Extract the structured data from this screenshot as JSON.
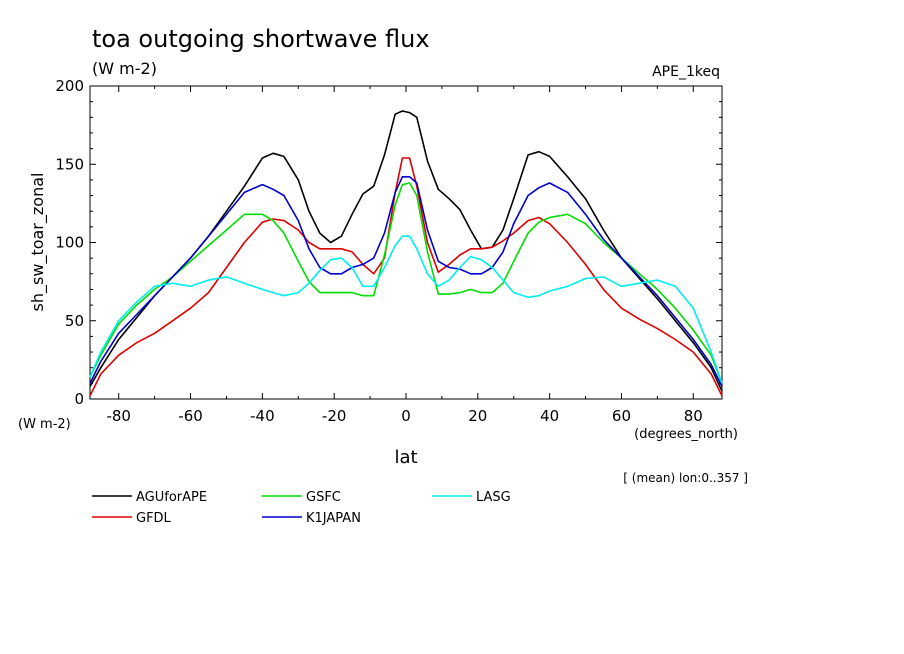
{
  "chart_data": {
    "type": "line",
    "title": "toa outgoing shortwave flux",
    "units": "(W m-2)",
    "experiment": "APE_1keq",
    "ylabel": "sh_sw_toar_zonal",
    "yunits": "(W m-2)",
    "xlabel": "lat",
    "xunits": "(degrees_north)",
    "note": "[ (mean) lon:0..357 ]",
    "xlim": [
      -88,
      88
    ],
    "ylim": [
      0,
      200
    ],
    "xticks": [
      "-80",
      "-60",
      "-40",
      "-20",
      "0",
      "20",
      "40",
      "60",
      "80"
    ],
    "yticks": [
      "0",
      "50",
      "100",
      "150",
      "200"
    ],
    "grid": false,
    "legend_position": "bottom",
    "series": [
      {
        "name": "AGUforAPE",
        "color": "#000000",
        "x": [
          -88,
          -85,
          -80,
          -75,
          -70,
          -65,
          -60,
          -55,
          -50,
          -45,
          -40,
          -37,
          -34,
          -30,
          -27,
          -24,
          -21,
          -18,
          -15,
          -12,
          -9,
          -6,
          -3,
          -1,
          1,
          3,
          6,
          9,
          12,
          15,
          18,
          21,
          24,
          27,
          30,
          34,
          37,
          40,
          45,
          50,
          55,
          60,
          65,
          70,
          75,
          80,
          85,
          88
        ],
        "y": [
          8,
          20,
          38,
          52,
          66,
          78,
          90,
          104,
          120,
          136,
          154,
          157,
          155,
          140,
          120,
          106,
          100,
          104,
          118,
          131,
          136,
          156,
          182,
          184,
          183,
          180,
          152,
          134,
          128,
          121,
          108,
          96,
          97,
          108,
          128,
          156,
          158,
          155,
          142,
          128,
          108,
          90,
          77,
          64,
          50,
          36,
          20,
          5
        ]
      },
      {
        "name": "GFDL",
        "color": "#dd0000",
        "x": [
          -88,
          -85,
          -80,
          -75,
          -70,
          -65,
          -60,
          -55,
          -50,
          -45,
          -40,
          -37,
          -34,
          -30,
          -27,
          -24,
          -21,
          -18,
          -15,
          -12,
          -9,
          -6,
          -3,
          -1,
          1,
          3,
          6,
          9,
          12,
          15,
          18,
          21,
          24,
          27,
          30,
          34,
          37,
          40,
          45,
          50,
          55,
          60,
          65,
          70,
          75,
          80,
          85,
          88
        ],
        "y": [
          2,
          16,
          28,
          36,
          42,
          50,
          58,
          68,
          84,
          100,
          113,
          115,
          114,
          108,
          100,
          96,
          96,
          96,
          94,
          86,
          80,
          90,
          132,
          154,
          154,
          136,
          100,
          81,
          86,
          92,
          96,
          96,
          97,
          101,
          106,
          114,
          116,
          112,
          100,
          86,
          70,
          58,
          51,
          45,
          38,
          30,
          16,
          2
        ]
      },
      {
        "name": "GSFC",
        "color": "#00dd00",
        "x": [
          -88,
          -85,
          -80,
          -75,
          -70,
          -65,
          -60,
          -55,
          -50,
          -45,
          -40,
          -37,
          -34,
          -30,
          -27,
          -24,
          -21,
          -18,
          -15,
          -12,
          -9,
          -6,
          -3,
          -1,
          1,
          3,
          6,
          9,
          12,
          15,
          18,
          21,
          24,
          27,
          30,
          34,
          37,
          40,
          45,
          50,
          55,
          60,
          65,
          70,
          75,
          80,
          85,
          88
        ],
        "y": [
          14,
          28,
          48,
          60,
          70,
          78,
          88,
          98,
          108,
          118,
          118,
          114,
          106,
          88,
          75,
          68,
          68,
          68,
          68,
          66,
          66,
          92,
          124,
          137,
          138,
          130,
          94,
          67,
          67,
          68,
          70,
          68,
          68,
          74,
          88,
          106,
          113,
          116,
          118,
          112,
          100,
          90,
          80,
          70,
          58,
          44,
          28,
          10
        ]
      },
      {
        "name": "K1JAPAN",
        "color": "#0000cc",
        "x": [
          -88,
          -85,
          -80,
          -75,
          -70,
          -65,
          -60,
          -55,
          -50,
          -45,
          -40,
          -37,
          -34,
          -30,
          -27,
          -24,
          -21,
          -18,
          -15,
          -12,
          -9,
          -6,
          -3,
          -1,
          1,
          3,
          6,
          9,
          12,
          15,
          18,
          21,
          24,
          27,
          30,
          34,
          37,
          40,
          45,
          50,
          55,
          60,
          65,
          70,
          75,
          80,
          85,
          88
        ],
        "y": [
          10,
          24,
          42,
          54,
          66,
          78,
          90,
          104,
          118,
          132,
          137,
          134,
          130,
          114,
          96,
          84,
          80,
          80,
          84,
          86,
          90,
          106,
          132,
          142,
          142,
          138,
          108,
          88,
          84,
          83,
          80,
          80,
          84,
          94,
          112,
          130,
          135,
          138,
          132,
          118,
          102,
          90,
          78,
          66,
          52,
          38,
          22,
          8
        ]
      },
      {
        "name": "LASG",
        "color": "#00eeee",
        "x": [
          -88,
          -85,
          -80,
          -75,
          -70,
          -65,
          -60,
          -55,
          -50,
          -45,
          -40,
          -37,
          -34,
          -30,
          -27,
          -24,
          -21,
          -18,
          -15,
          -12,
          -9,
          -6,
          -3,
          -1,
          1,
          3,
          6,
          9,
          12,
          15,
          18,
          21,
          24,
          27,
          30,
          34,
          37,
          40,
          45,
          50,
          55,
          60,
          65,
          70,
          75,
          80,
          85,
          88
        ],
        "y": [
          14,
          30,
          50,
          62,
          72,
          74,
          72,
          76,
          78,
          74,
          70,
          68,
          66,
          68,
          74,
          82,
          89,
          90,
          84,
          72,
          72,
          84,
          98,
          104,
          104,
          96,
          80,
          72,
          76,
          84,
          91,
          89,
          84,
          76,
          68,
          65,
          66,
          69,
          72,
          77,
          78,
          72,
          74,
          76,
          72,
          58,
          30,
          10
        ]
      }
    ]
  }
}
